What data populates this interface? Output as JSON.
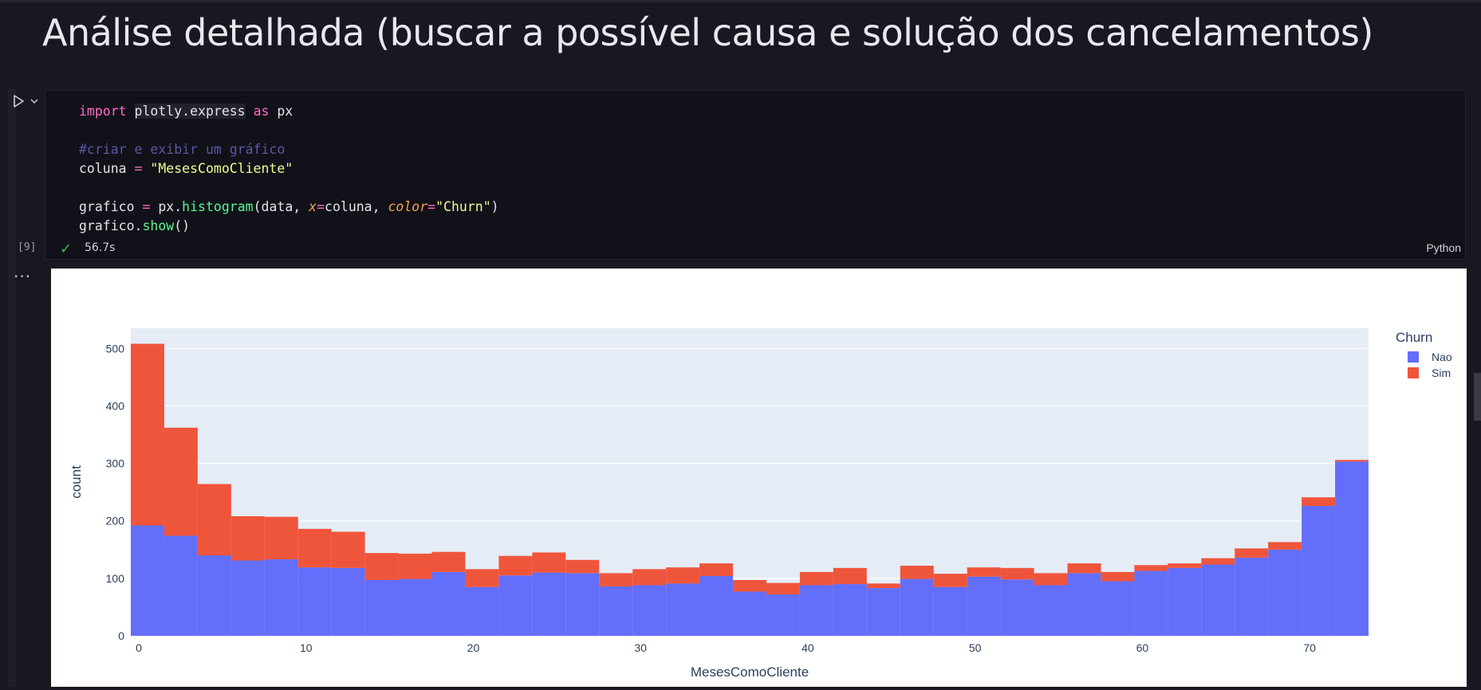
{
  "heading": "Análise detalhada (buscar a possível causa e solução dos cancelamentos)",
  "cell": {
    "code": {
      "import_kw": "import",
      "module": "plotly.express",
      "as_kw": "as",
      "alias": "px",
      "comment": "#criar e exibir um gráfico",
      "line3_var": "coluna",
      "line3_value": "\"MesesComoCliente\"",
      "line5_var": "grafico",
      "line5_obj": "px",
      "line5_fn": "histogram",
      "line5_arg1": "data",
      "line5_param_x": "x",
      "line5_val_x": "coluna",
      "line5_param_color": "color",
      "line5_val_color": "\"Churn\"",
      "line6_obj": "grafico",
      "line6_fn": "show"
    },
    "execution_count": "[9]",
    "status_time": "56.7s",
    "language": "Python"
  },
  "chart_data": {
    "type": "bar",
    "stacked": true,
    "x_bin_width": 2,
    "x_bin_start": 0,
    "x": [
      0,
      2,
      4,
      6,
      8,
      10,
      12,
      14,
      16,
      18,
      20,
      22,
      24,
      26,
      28,
      30,
      32,
      34,
      36,
      38,
      40,
      42,
      44,
      46,
      48,
      50,
      52,
      54,
      56,
      58,
      60,
      62,
      64,
      66,
      68,
      70,
      72
    ],
    "series": [
      {
        "name": "Nao",
        "color": "#636efa",
        "values": [
          192,
          174,
          140,
          131,
          133,
          119,
          118,
          97,
          99,
          111,
          85,
          105,
          110,
          109,
          86,
          88,
          91,
          104,
          77,
          72,
          88,
          90,
          83,
          99,
          85,
          103,
          98,
          88,
          109,
          95,
          113,
          118,
          124,
          136,
          150,
          226,
          303
        ]
      },
      {
        "name": "Sim",
        "color": "#ef553b",
        "values": [
          316,
          188,
          124,
          77,
          74,
          67,
          63,
          47,
          44,
          35,
          31,
          34,
          35,
          23,
          23,
          28,
          28,
          22,
          20,
          20,
          23,
          28,
          8,
          23,
          23,
          16,
          20,
          21,
          17,
          16,
          10,
          8,
          11,
          16,
          13,
          15,
          3
        ]
      }
    ],
    "xlabel": "MesesComoCliente",
    "ylabel": "count",
    "xlim": [
      0,
      74
    ],
    "ylim": [
      0,
      535
    ],
    "xticks": [
      0,
      10,
      20,
      30,
      40,
      50,
      60,
      70
    ],
    "yticks": [
      0,
      100,
      200,
      300,
      400,
      500
    ],
    "legend": {
      "title": "Churn",
      "placement": "top-right"
    },
    "grid": true
  }
}
